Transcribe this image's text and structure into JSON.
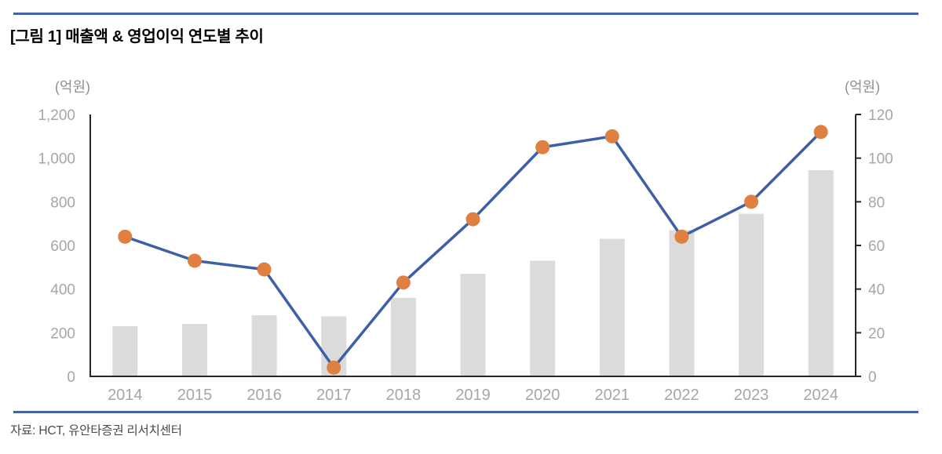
{
  "header": {
    "title": "[그림 1] 매출액 & 영업이익 연도별 추이"
  },
  "footer": {
    "source": "자료: HCT, 유안타증권 리서치센터"
  },
  "colors": {
    "rule_blue": "#4365a8",
    "title_text": "#000000",
    "bar_fill": "#dbdbdb",
    "line_stroke": "#3d5fa8",
    "marker_fill": "#df8040",
    "axis_line": "#262626",
    "tick_label": "#a6a6a6",
    "unit_label": "#909090",
    "source_text": "#4a4a4a"
  },
  "chart_data": {
    "type": "bar",
    "subtype": "combo-bar-line-dual-axis",
    "title": "매출액 & 영업이익 연도별 추이",
    "categories": [
      "2014",
      "2015",
      "2016",
      "2017",
      "2018",
      "2019",
      "2020",
      "2021",
      "2022",
      "2023",
      "2024"
    ],
    "series": [
      {
        "name": "매출액",
        "type": "bar",
        "axis": "left",
        "values": [
          230,
          240,
          280,
          275,
          360,
          470,
          530,
          630,
          670,
          745,
          945
        ]
      },
      {
        "name": "영업이익",
        "type": "line",
        "axis": "right",
        "values": [
          64,
          53,
          49,
          4,
          43,
          72,
          105,
          110,
          64,
          80,
          112
        ]
      }
    ],
    "left_axis": {
      "unit": "(억원)",
      "min": 0,
      "max": 1200,
      "ticks": [
        0,
        200,
        400,
        600,
        800,
        1000,
        1200
      ],
      "tick_labels": [
        "0",
        "200",
        "400",
        "600",
        "800",
        "1,000",
        "1,200"
      ]
    },
    "right_axis": {
      "unit": "(억원)",
      "min": 0,
      "max": 120,
      "ticks": [
        0,
        20,
        40,
        60,
        80,
        100,
        120
      ],
      "tick_labels": [
        "0",
        "20",
        "40",
        "60",
        "80",
        "100",
        "120"
      ]
    },
    "grid": false,
    "legend": "none"
  }
}
